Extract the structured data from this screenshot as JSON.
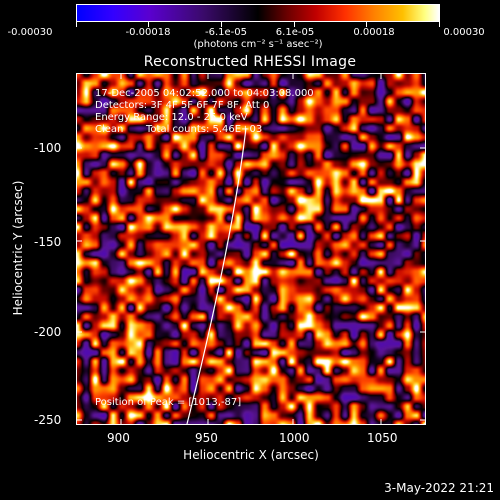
{
  "colorbar": {
    "ticks": [
      "-0.00030",
      "-0.00018",
      "-6.1e-05",
      "6.1e-05",
      "0.00018",
      "0.00030"
    ],
    "units_label": "(photons cm⁻² s⁻¹ asec⁻²)"
  },
  "plot": {
    "title": "Reconstructed RHESSI Image",
    "xlabel": "Heliocentric X (arcsec)",
    "ylabel": "Heliocentric Y (arcsec)",
    "xlim": [
      880,
      1070
    ],
    "ylim": [
      -252,
      -58
    ],
    "xticks": [
      "900",
      "950",
      "1000",
      "1050"
    ],
    "yticks": [
      "-100",
      "-150",
      "-200",
      "-250"
    ],
    "info": {
      "time": "17-Dec-2005 04:02:52.000 to 04:03:08.000",
      "detectors": "Detectors: 3F 4F 5F 6F 7F 8F, Att 0",
      "energy": "Energy Range: 12.0 - 25.0 keV",
      "method": "Clean",
      "counts": "Total counts: 5.46E+03"
    },
    "peak": "Position of Peak = [1013,-87]"
  },
  "footer": {
    "date": "3-May-2022 21:21"
  },
  "colors": {
    "background": "#000000",
    "foreground": "#ffffff"
  }
}
